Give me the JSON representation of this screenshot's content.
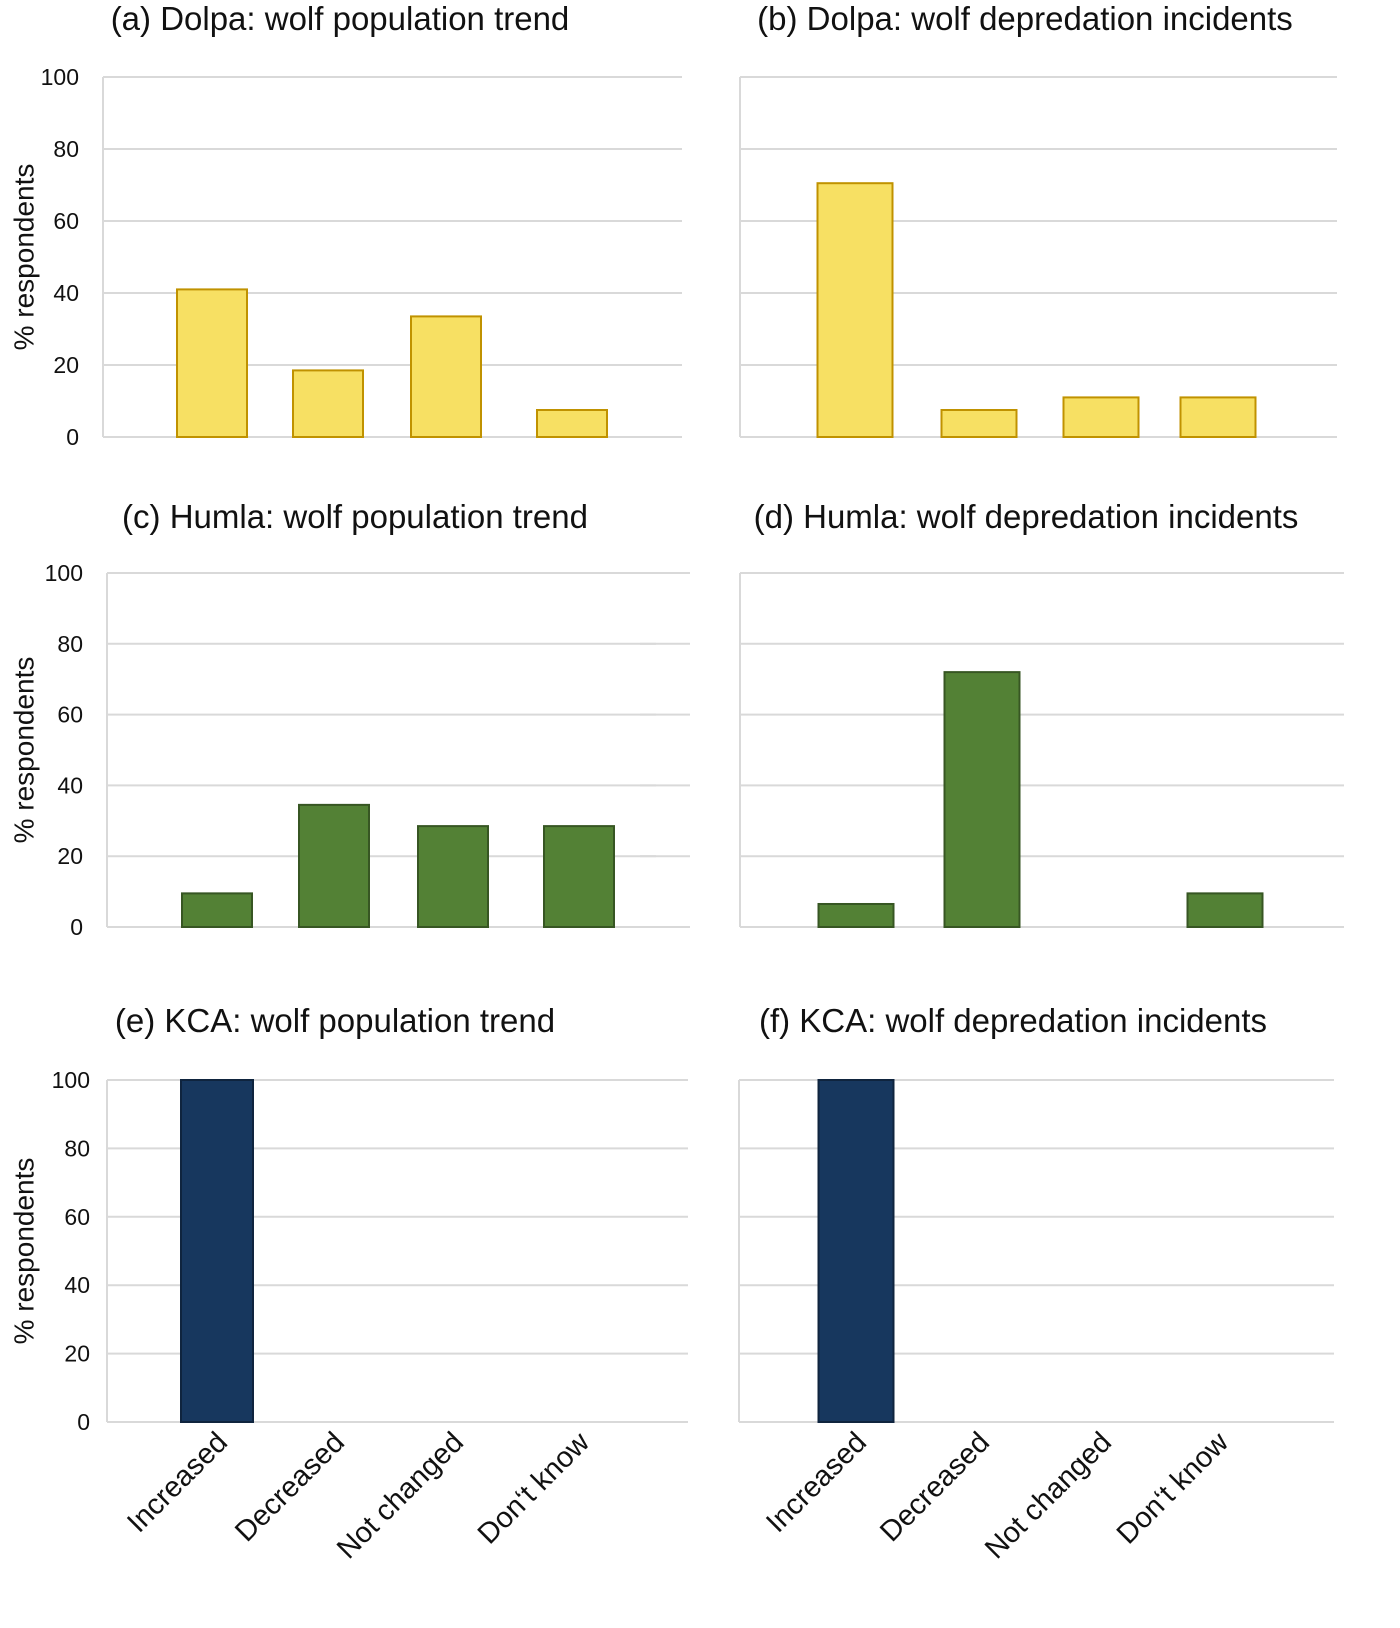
{
  "figure": {
    "categories": [
      "Increased",
      "Decreased",
      "Not changed",
      "Don‘t know"
    ],
    "ylabel": "% respondents",
    "colors": {
      "dolpa_fill": "#f7e063",
      "dolpa_stroke": "#c09200",
      "humla_fill": "#538135",
      "humla_stroke": "#375623",
      "kca_fill": "#17375e",
      "kca_stroke": "#0f243e",
      "grid": "#d9d9d9"
    }
  },
  "chart_data": [
    {
      "id": "a",
      "type": "bar",
      "title": "(a) Dolpa: wolf population trend",
      "xlabel": "",
      "ylabel": "% respondents",
      "categories": [
        "Increased",
        "Decreased",
        "Not changed",
        "Don‘t know"
      ],
      "values": [
        41,
        18.5,
        33.5,
        7.5
      ],
      "ylim": [
        0,
        100
      ],
      "yticks": [
        0,
        20,
        40,
        60,
        80,
        100
      ],
      "grid": true,
      "series_color": "dolpa"
    },
    {
      "id": "b",
      "type": "bar",
      "title": "(b) Dolpa: wolf depredation incidents",
      "xlabel": "",
      "ylabel": "",
      "categories": [
        "Increased",
        "Decreased",
        "Not changed",
        "Don‘t know"
      ],
      "values": [
        70.5,
        7.5,
        11,
        11
      ],
      "ylim": [
        0,
        100
      ],
      "yticks": [
        0,
        20,
        40,
        60,
        80,
        100
      ],
      "grid": true,
      "series_color": "dolpa"
    },
    {
      "id": "c",
      "type": "bar",
      "title": "(c) Humla: wolf population trend",
      "xlabel": "",
      "ylabel": "% respondents",
      "categories": [
        "Increased",
        "Decreased",
        "Not changed",
        "Don‘t know"
      ],
      "values": [
        9.5,
        34.5,
        28.5,
        28.5
      ],
      "ylim": [
        0,
        100
      ],
      "yticks": [
        0,
        20,
        40,
        60,
        80,
        100
      ],
      "grid": true,
      "series_color": "humla"
    },
    {
      "id": "d",
      "type": "bar",
      "title": "(d) Humla: wolf depredation incidents",
      "xlabel": "",
      "ylabel": "",
      "categories": [
        "Increased",
        "Decreased",
        "Not changed",
        "Don‘t know"
      ],
      "values": [
        6.5,
        72,
        0,
        9.5
      ],
      "ylim": [
        0,
        100
      ],
      "yticks": [
        0,
        20,
        40,
        60,
        80,
        100
      ],
      "grid": true,
      "series_color": "humla"
    },
    {
      "id": "e",
      "type": "bar",
      "title": "(e) KCA: wolf population trend",
      "xlabel": "",
      "ylabel": "% respondents",
      "categories": [
        "Increased",
        "Decreased",
        "Not changed",
        "Don‘t know"
      ],
      "values": [
        100,
        0,
        0,
        0
      ],
      "ylim": [
        0,
        100
      ],
      "yticks": [
        0,
        20,
        40,
        60,
        80,
        100
      ],
      "grid": true,
      "series_color": "kca"
    },
    {
      "id": "f",
      "type": "bar",
      "title": "(f) KCA: wolf depredation incidents",
      "xlabel": "",
      "ylabel": "",
      "categories": [
        "Increased",
        "Decreased",
        "Not changed",
        "Don‘t know"
      ],
      "values": [
        100,
        0,
        0,
        0
      ],
      "ylim": [
        0,
        100
      ],
      "yticks": [
        0,
        20,
        40,
        60,
        80,
        100
      ],
      "grid": true,
      "series_color": "kca"
    }
  ]
}
